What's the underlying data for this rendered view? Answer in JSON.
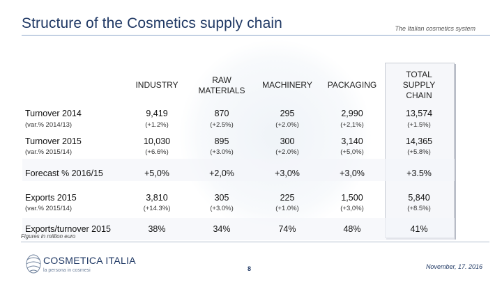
{
  "header": {
    "title": "Structure of the Cosmetics supply chain",
    "subtitle": "The Italian cosmetics system"
  },
  "table": {
    "columns": [
      {
        "label": "INDUSTRY"
      },
      {
        "label": "RAW MATERIALS"
      },
      {
        "label": "MACHINERY"
      },
      {
        "label": "PACKAGING"
      },
      {
        "label": "TOTAL SUPPLY CHAIN"
      }
    ],
    "rows": [
      {
        "label": "Turnover 2014",
        "sublabel": "(var.% 2014/13)",
        "values": [
          "9,419",
          "870",
          "295",
          "2,990",
          "13,574"
        ],
        "subvalues": [
          "(+1.2%)",
          "(+2.5%)",
          "(+2.0%)",
          "(+2,1%)",
          "(+1.5%)"
        ]
      },
      {
        "label": "Turnover 2015",
        "sublabel": "(var.% 2015/14)",
        "values": [
          "10,030",
          "895",
          "300",
          "3,140",
          "14,365"
        ],
        "subvalues": [
          "(+6.6%)",
          "(+3.0%)",
          "(+2.0%)",
          "(+5,0%)",
          "(+5.8%)"
        ]
      },
      {
        "label": "Forecast % 2016/15",
        "sublabel": "",
        "values": [
          "+5,0%",
          "+2,0%",
          "+3,0%",
          "+3,0%",
          "+3.5%"
        ],
        "subvalues": [
          "",
          "",
          "",
          "",
          ""
        ]
      },
      {
        "label": "Exports 2015",
        "sublabel": "(var.% 2015/14)",
        "values": [
          "3,810",
          "305",
          "225",
          "1,500",
          "5,840"
        ],
        "subvalues": [
          "(+14.3%)",
          "(+3.0%)",
          "(+1.0%)",
          "(+3,0%)",
          "(+8.5%)"
        ]
      },
      {
        "label": "Exports/turnover 2015",
        "sublabel": "",
        "values": [
          "38%",
          "34%",
          "74%",
          "48%",
          "41%"
        ],
        "subvalues": [
          "",
          "",
          "",
          "",
          ""
        ]
      }
    ]
  },
  "footnote": "Figures in million euro",
  "footer": {
    "logo_name": "COSMETICA ITALIA",
    "logo_tagline": "la persona in cosmesi",
    "page_number": "8",
    "date": "November, 17. 2016"
  },
  "colors": {
    "title": "#1f3864",
    "rule": "#8aa4c8"
  }
}
